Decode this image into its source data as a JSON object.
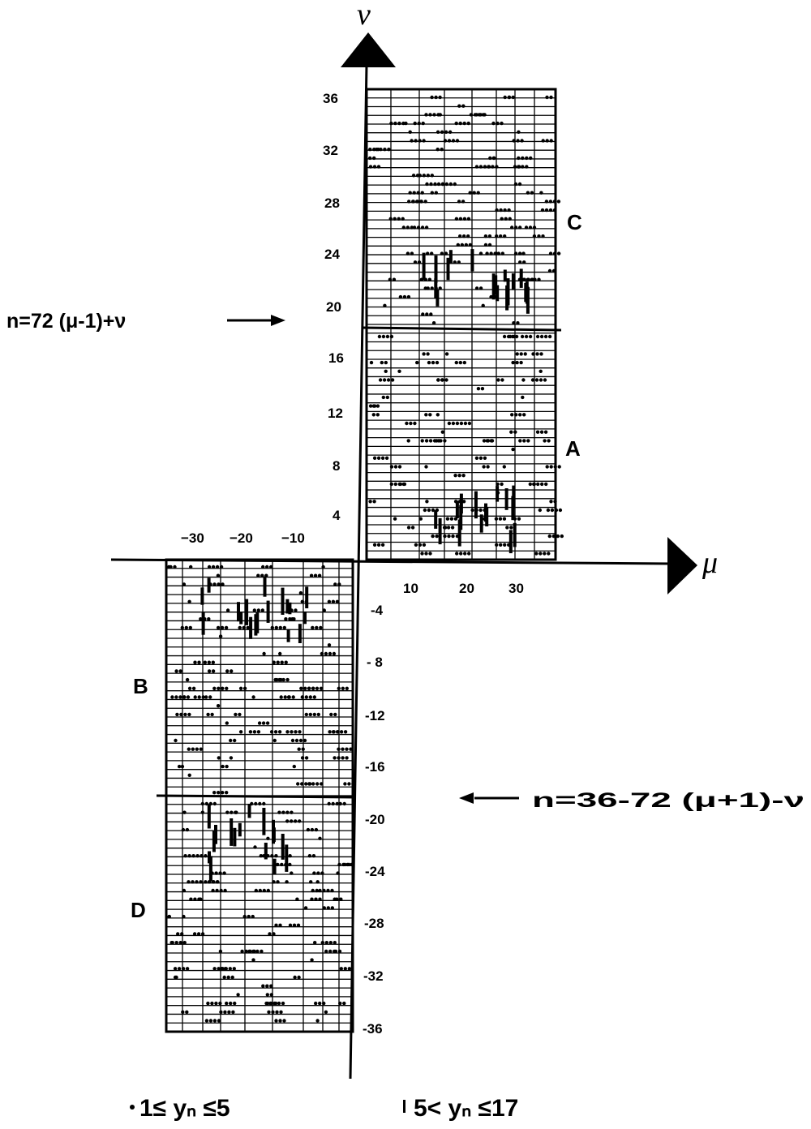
{
  "axes": {
    "y_name": "ν",
    "x_name": "μ",
    "x_ticks_positive": [
      "10",
      "20",
      "30"
    ],
    "x_ticks_negative": [
      "−30",
      "−20",
      "−10"
    ],
    "y_ticks_positive": [
      "36",
      "32",
      "28",
      "24",
      "20",
      "16",
      "12",
      "8",
      "4"
    ],
    "y_ticks_negative": [
      "-4",
      "- 8",
      "-12",
      "-16",
      "-20",
      "-24",
      "-28",
      "-32",
      "-36"
    ]
  },
  "regions": {
    "a": "A",
    "b": "B",
    "c": "C",
    "d": "D"
  },
  "formulas": {
    "top_left": "n=72 (μ-1)+ν",
    "bottom_right": "n=36-72 (μ+1)-ν"
  },
  "legend": {
    "item1": "1≤ yₙ ≤5",
    "item2": "5< yₙ ≤17"
  },
  "colors": {
    "ink": "#000000",
    "paper": "#ffffff"
  }
}
